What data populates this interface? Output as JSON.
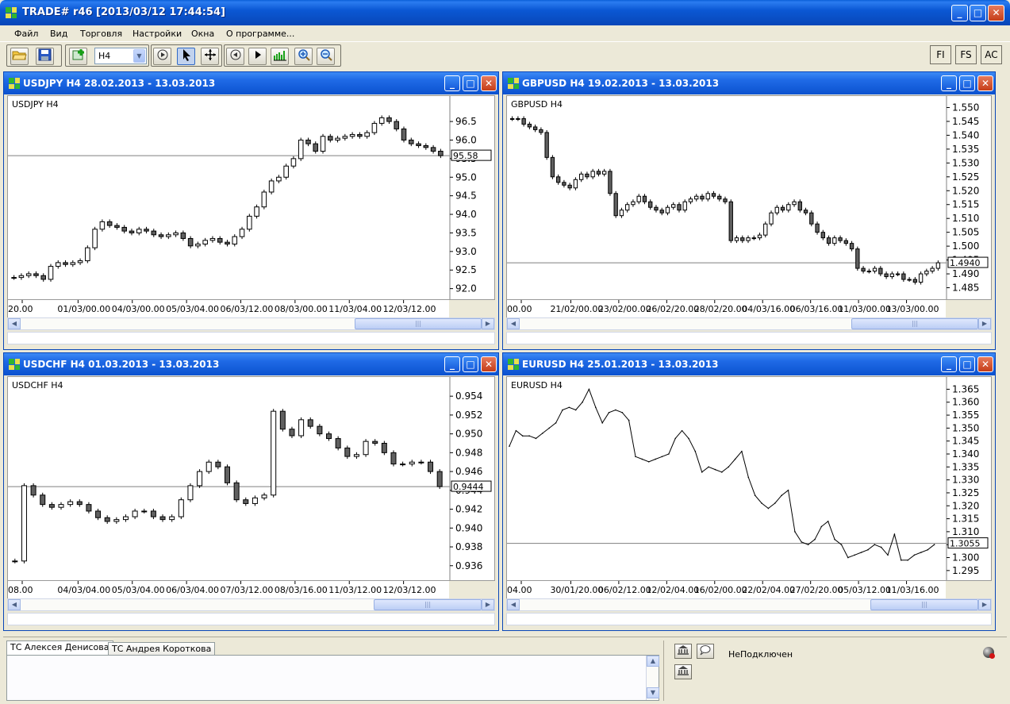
{
  "app": {
    "title": "TRADE# r46 [2013/03/12 17:44:54]",
    "window_buttons": {
      "minimize": "_",
      "maximize": "□",
      "close": "✕"
    }
  },
  "menu": [
    "Файл",
    "Вид",
    "Торговля",
    "Настройки",
    "Окна",
    "О программе..."
  ],
  "toolbar": {
    "timeframe_value": "H4",
    "buttons": [
      "open-folder-icon",
      "save-icon",
      "add-chart-icon",
      "play-icon",
      "cursor-icon",
      "crosshair-icon",
      "step-back-icon",
      "step-forward-icon",
      "volume-icon",
      "zoom-in-icon",
      "zoom-out-icon"
    ],
    "right_buttons": [
      "FI",
      "FS",
      "AC"
    ]
  },
  "colors": {
    "title_blue": "#0b58d4",
    "candle_up": "#ffffff",
    "candle_down": "#606060",
    "line": "#000000",
    "price_line": "#7f7f7f"
  },
  "charts": [
    {
      "id": "usdjpy",
      "title": "USDJPY H4 28.02.2013 - 13.03.2013",
      "symbol": "USDJPY H4",
      "price_label": "95.58",
      "y_ticks": [
        "96.5",
        "96.0",
        "95.5",
        "95.0",
        "94.5",
        "94.0",
        "93.5",
        "93.0",
        "92.5",
        "92.0"
      ],
      "x_ticks": [
        "20.00",
        "01/03/00.00",
        "04/03/00.00",
        "05/03/04.00",
        "06/03/12.00",
        "08/03/00.00",
        "11/03/04.00",
        "12/03/12.00"
      ]
    },
    {
      "id": "gbpusd",
      "title": "GBPUSD H4 19.02.2013 - 13.03.2013",
      "symbol": "GBPUSD H4",
      "price_label": "1.4940",
      "y_ticks": [
        "1.550",
        "1.545",
        "1.540",
        "1.535",
        "1.530",
        "1.525",
        "1.520",
        "1.515",
        "1.510",
        "1.505",
        "1.500",
        "1.495",
        "1.490",
        "1.485"
      ],
      "x_ticks": [
        "00.00",
        "21/02/00.00",
        "23/02/00.00",
        "26/02/20.00",
        "28/02/20.00",
        "04/03/16.00",
        "06/03/16.00",
        "11/03/00.00",
        "13/03/00.00"
      ]
    },
    {
      "id": "usdchf",
      "title": "USDCHF H4 01.03.2013 - 13.03.2013",
      "symbol": "USDCHF H4",
      "price_label": "0.9444",
      "y_ticks": [
        "0.954",
        "0.952",
        "0.950",
        "0.948",
        "0.946",
        "0.944",
        "0.942",
        "0.940",
        "0.938",
        "0.936"
      ],
      "x_ticks": [
        "08.00",
        "04/03/04.00",
        "05/03/04.00",
        "06/03/04.00",
        "07/03/12.00",
        "08/03/16.00",
        "11/03/12.00",
        "12/03/12.00"
      ]
    },
    {
      "id": "eurusd",
      "title": "EURUSD H4 25.01.2013 - 13.03.2013",
      "symbol": "EURUSD H4",
      "price_label": "1.3055",
      "y_ticks": [
        "1.365",
        "1.360",
        "1.355",
        "1.350",
        "1.345",
        "1.340",
        "1.335",
        "1.330",
        "1.325",
        "1.320",
        "1.315",
        "1.310",
        "1.305",
        "1.300",
        "1.295"
      ],
      "x_ticks": [
        "04.00",
        "30/01/20.00",
        "06/02/12.00",
        "12/02/04.00",
        "16/02/00.00",
        "22/02/04.00",
        "27/02/20.00",
        "05/03/12.00",
        "11/03/16.00"
      ]
    }
  ],
  "chart_data": [
    {
      "type": "candlestick",
      "title": "USDJPY H4",
      "ylim": [
        91.8,
        97.1
      ],
      "close_value": 95.58,
      "values": [
        92.3,
        92.35,
        92.4,
        92.35,
        92.25,
        92.6,
        92.7,
        92.65,
        92.7,
        92.75,
        93.1,
        93.6,
        93.8,
        93.7,
        93.65,
        93.55,
        93.5,
        93.6,
        93.55,
        93.45,
        93.4,
        93.45,
        93.5,
        93.35,
        93.15,
        93.2,
        93.3,
        93.35,
        93.25,
        93.2,
        93.4,
        93.6,
        93.95,
        94.2,
        94.6,
        94.9,
        95.0,
        95.3,
        95.5,
        96.0,
        95.9,
        95.7,
        96.1,
        96.0,
        96.05,
        96.1,
        96.15,
        96.1,
        96.2,
        96.45,
        96.6,
        96.5,
        96.3,
        96.0,
        95.9,
        95.85,
        95.8,
        95.7,
        95.58
      ]
    },
    {
      "type": "candlestick",
      "title": "GBPUSD H4",
      "ylim": [
        1.482,
        1.553
      ],
      "close_value": 1.494,
      "values": [
        1.546,
        1.546,
        1.544,
        1.543,
        1.542,
        1.541,
        1.532,
        1.525,
        1.523,
        1.522,
        1.521,
        1.524,
        1.526,
        1.525,
        1.527,
        1.526,
        1.527,
        1.519,
        1.511,
        1.513,
        1.515,
        1.516,
        1.518,
        1.516,
        1.514,
        1.513,
        1.512,
        1.514,
        1.515,
        1.513,
        1.516,
        1.517,
        1.518,
        1.517,
        1.519,
        1.518,
        1.517,
        1.516,
        1.502,
        1.503,
        1.502,
        1.503,
        1.503,
        1.504,
        1.508,
        1.512,
        1.514,
        1.513,
        1.515,
        1.516,
        1.513,
        1.512,
        1.508,
        1.505,
        1.503,
        1.501,
        1.503,
        1.502,
        1.501,
        1.499,
        1.492,
        1.491,
        1.491,
        1.492,
        1.49,
        1.489,
        1.49,
        1.49,
        1.488,
        1.488,
        1.487,
        1.49,
        1.491,
        1.492,
        1.494
      ]
    },
    {
      "type": "candlestick",
      "title": "USDCHF H4",
      "ylim": [
        0.9348,
        0.9557
      ],
      "close_value": 0.9444,
      "values": [
        0.9365,
        0.9445,
        0.9435,
        0.9425,
        0.9422,
        0.9425,
        0.9428,
        0.9425,
        0.9418,
        0.9411,
        0.9407,
        0.9409,
        0.9412,
        0.9418,
        0.9418,
        0.9412,
        0.9409,
        0.9412,
        0.943,
        0.9445,
        0.946,
        0.947,
        0.9465,
        0.9448,
        0.943,
        0.9426,
        0.9432,
        0.9435,
        0.9524,
        0.9505,
        0.9498,
        0.9515,
        0.9508,
        0.95,
        0.9495,
        0.9485,
        0.9476,
        0.9478,
        0.9492,
        0.949,
        0.948,
        0.9468,
        0.9468,
        0.947,
        0.947,
        0.946,
        0.9444
      ]
    },
    {
      "type": "line",
      "title": "EURUSD H4",
      "ylim": [
        1.2925,
        1.3685
      ],
      "close_value": 1.3055,
      "values": [
        1.343,
        1.349,
        1.347,
        1.347,
        1.346,
        1.348,
        1.35,
        1.352,
        1.357,
        1.358,
        1.357,
        1.36,
        1.365,
        1.358,
        1.352,
        1.356,
        1.357,
        1.356,
        1.353,
        1.339,
        1.338,
        1.337,
        1.338,
        1.339,
        1.34,
        1.346,
        1.349,
        1.346,
        1.341,
        1.333,
        1.335,
        1.334,
        1.333,
        1.335,
        1.338,
        1.341,
        1.331,
        1.324,
        1.321,
        1.319,
        1.321,
        1.324,
        1.326,
        1.31,
        1.306,
        1.305,
        1.307,
        1.312,
        1.314,
        1.307,
        1.305,
        1.3,
        1.301,
        1.302,
        1.303,
        1.305,
        1.304,
        1.301,
        1.309,
        1.299,
        1.299,
        1.301,
        1.302,
        1.303,
        1.305
      ]
    }
  ],
  "bottom": {
    "tabs": [
      "ТС Алексея Денисова",
      "ТС Андрея Короткова"
    ],
    "status": "НеПодключен"
  }
}
